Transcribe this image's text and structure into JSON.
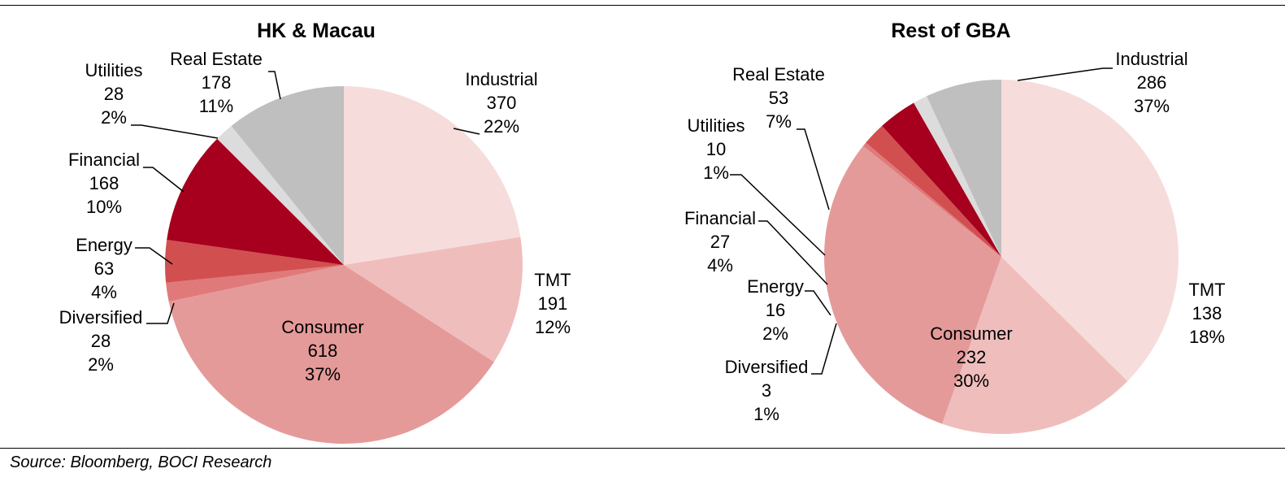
{
  "source": "Source: Bloomberg, BOCI Research",
  "chart_data": [
    {
      "type": "pie",
      "title": "HK & Macau",
      "slices": [
        {
          "label": "Industrial",
          "value": 370,
          "pct": "22%",
          "color": "#f7dcdc"
        },
        {
          "label": "TMT",
          "value": 191,
          "pct": "12%",
          "color": "#f0bdbd"
        },
        {
          "label": "Consumer",
          "value": 618,
          "pct": "37%",
          "color": "#e59a9a"
        },
        {
          "label": "Diversified",
          "value": 28,
          "pct": "2%",
          "color": "#e07a7a"
        },
        {
          "label": "Energy",
          "value": 63,
          "pct": "4%",
          "color": "#d24f4f"
        },
        {
          "label": "Financial",
          "value": 168,
          "pct": "10%",
          "color": "#a6001e"
        },
        {
          "label": "Utilities",
          "value": 28,
          "pct": "2%",
          "color": "#dcdcdc"
        },
        {
          "label": "Real Estate",
          "value": 178,
          "pct": "11%",
          "color": "#bfbfbf"
        }
      ]
    },
    {
      "type": "pie",
      "title": "Rest of GBA",
      "slices": [
        {
          "label": "Industrial",
          "value": 286,
          "pct": "37%",
          "color": "#f7dcdc"
        },
        {
          "label": "TMT",
          "value": 138,
          "pct": "18%",
          "color": "#f0bdbd"
        },
        {
          "label": "Consumer",
          "value": 232,
          "pct": "30%",
          "color": "#e59a9a"
        },
        {
          "label": "Diversified",
          "value": 3,
          "pct": "1%",
          "color": "#e07a7a"
        },
        {
          "label": "Energy",
          "value": 16,
          "pct": "2%",
          "color": "#d24f4f"
        },
        {
          "label": "Financial",
          "value": 27,
          "pct": "4%",
          "color": "#a6001e"
        },
        {
          "label": "Utilities",
          "value": 10,
          "pct": "1%",
          "color": "#dcdcdc"
        },
        {
          "label": "Real Estate",
          "value": 53,
          "pct": "7%",
          "color": "#bfbfbf"
        }
      ]
    }
  ]
}
